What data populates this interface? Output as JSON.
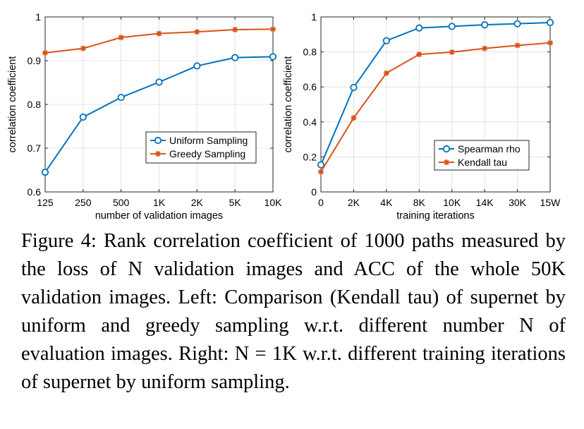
{
  "colors": {
    "blue": "#0072BD",
    "orange": "#D95319",
    "axis": "#262626",
    "grid": "#dcdcdc"
  },
  "chart_data": [
    {
      "type": "line",
      "title": "",
      "xlabel": "number of validation images",
      "ylabel": "correlation coefficient",
      "categories": [
        "125",
        "250",
        "500",
        "1K",
        "2K",
        "5K",
        "10K"
      ],
      "ylim": [
        0.6,
        1.0
      ],
      "yticks": [
        0.6,
        0.7,
        0.8,
        0.9,
        1.0
      ],
      "ytick_labels": [
        "0.6",
        "0.7",
        "0.8",
        "0.9",
        "1"
      ],
      "grid": true,
      "legend_position": "lower-right",
      "series": [
        {
          "name": "Uniform Sampling",
          "marker": "circle",
          "color": "#0072BD",
          "values": [
            0.645,
            0.771,
            0.816,
            0.851,
            0.888,
            0.907,
            0.909
          ]
        },
        {
          "name": "Greedy Sampling",
          "marker": "asterisk",
          "color": "#D95319",
          "values": [
            0.918,
            0.928,
            0.953,
            0.962,
            0.966,
            0.971,
            0.972
          ]
        }
      ]
    },
    {
      "type": "line",
      "title": "",
      "xlabel": "training iterations",
      "ylabel": "correlation coefficient",
      "categories": [
        "0",
        "2K",
        "4K",
        "8K",
        "10K",
        "14K",
        "30K",
        "15W"
      ],
      "ylim": [
        0,
        1.0
      ],
      "yticks": [
        0,
        0.2,
        0.4,
        0.6,
        0.8,
        1.0
      ],
      "ytick_labels": [
        "0",
        "0.2",
        "0.4",
        "0.6",
        "0.8",
        "1"
      ],
      "grid": true,
      "legend_position": "lower-right",
      "series": [
        {
          "name": "Spearman rho",
          "marker": "circle",
          "color": "#0072BD",
          "values": [
            0.155,
            0.597,
            0.864,
            0.937,
            0.946,
            0.955,
            0.961,
            0.968
          ]
        },
        {
          "name": "Kendall tau",
          "marker": "asterisk",
          "color": "#D95319",
          "values": [
            0.115,
            0.423,
            0.679,
            0.786,
            0.799,
            0.82,
            0.837,
            0.852
          ]
        }
      ]
    }
  ],
  "caption": {
    "label": "Figure 4:",
    "text": "Rank correlation coefficient of 1000 paths measured by the loss of N validation images and ACC of the whole 50K validation images. Left: Comparison (Kendall tau) of supernet by uniform and greedy sampling w.r.t. different number N of evaluation images. Right: N = 1K w.r.t. different training iterations of supernet by uniform sampling."
  }
}
